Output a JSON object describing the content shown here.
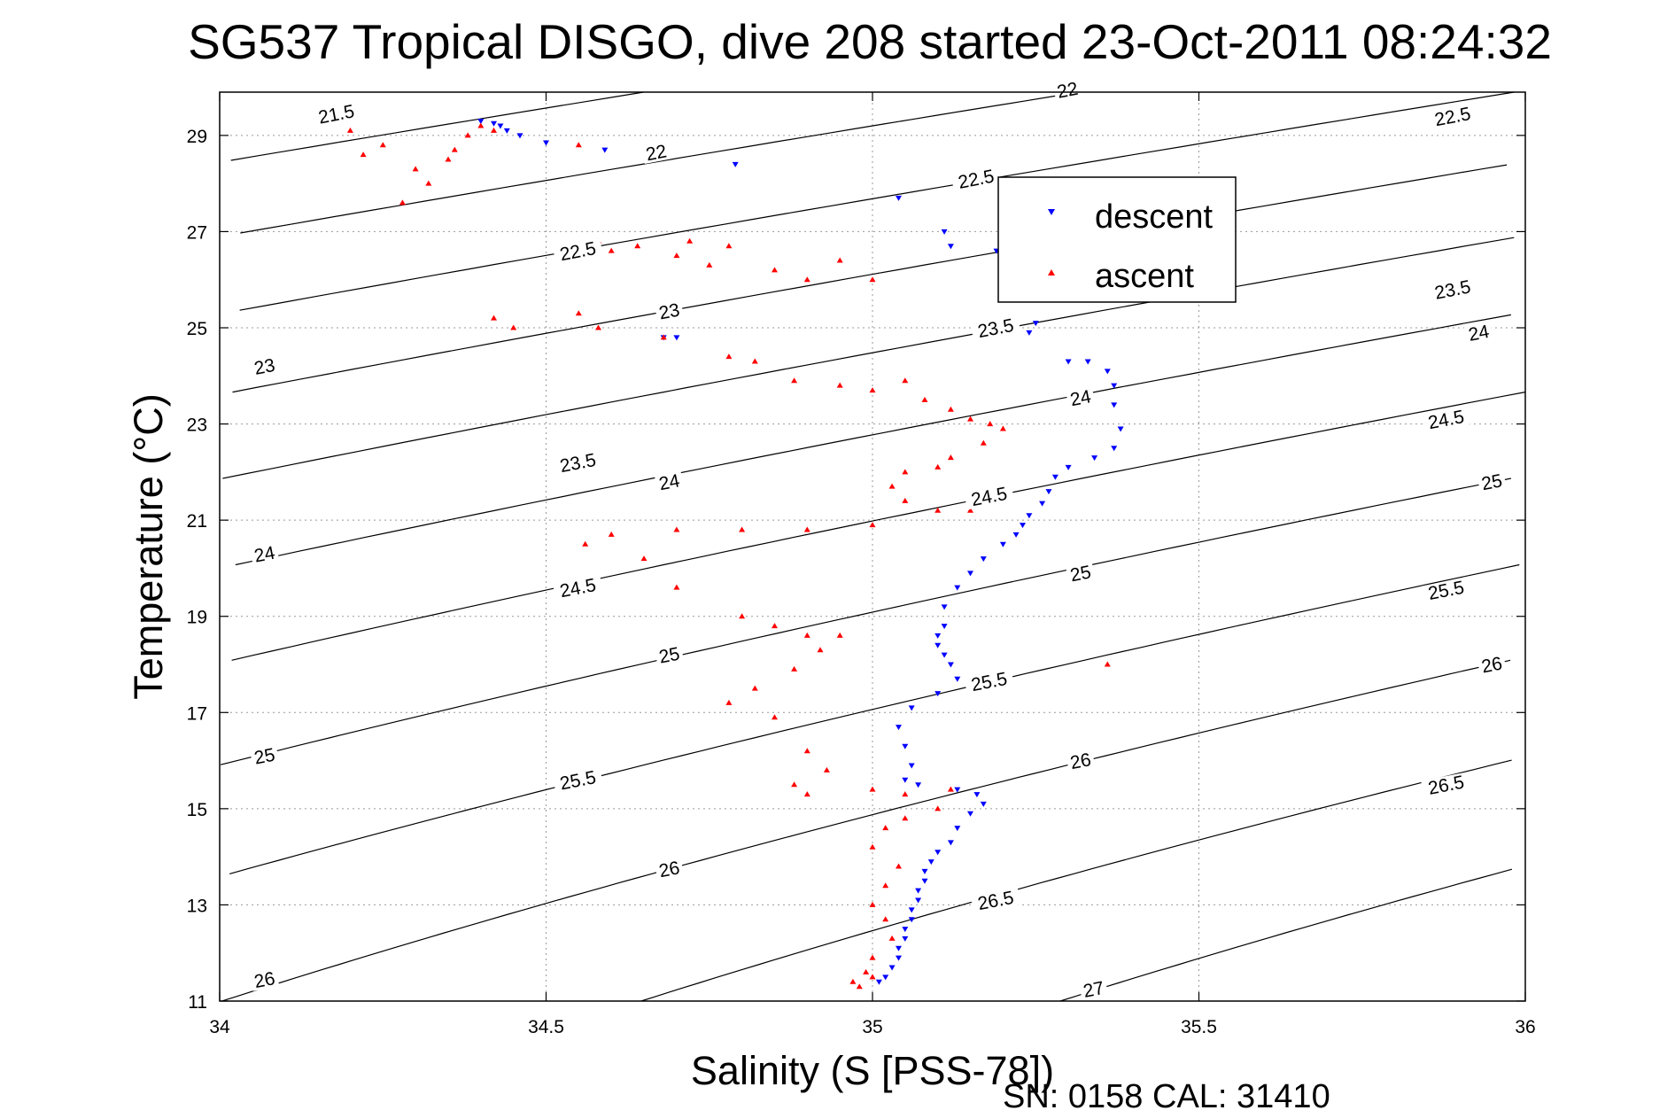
{
  "chart_data": {
    "type": "scatter",
    "title": "SG537 Tropical DISGO, dive 208 started 23-Oct-2011 08:24:32",
    "xlabel": "Salinity (S [PSS-78])",
    "ylabel": "Temperature (°C)",
    "xlim": [
      34,
      36
    ],
    "ylim": [
      11,
      29.9
    ],
    "xticks": [
      34,
      34.5,
      35,
      35.5,
      36
    ],
    "xtick_labels": [
      "34",
      "34.5",
      "35",
      "35.5",
      "36"
    ],
    "yticks": [
      11,
      13,
      15,
      17,
      19,
      21,
      23,
      25,
      27,
      29
    ],
    "ytick_labels": [
      "11",
      "13",
      "15",
      "17",
      "19",
      "21",
      "23",
      "25",
      "27",
      "29"
    ],
    "grid": true,
    "legend_position": "top-right",
    "footer": "SN: 0158  CAL: 31410",
    "colors": {
      "descent": "#0000ff",
      "ascent": "#ff0000",
      "contour": "#000000",
      "grid": "#999999"
    },
    "density_contours": {
      "levels": [
        21.5,
        22,
        22.5,
        23,
        23.5,
        24,
        24.5,
        25,
        25.5,
        26,
        26.5,
        27
      ],
      "labels": [
        {
          "text": "21.5",
          "x": 34.18,
          "y": 29.35
        },
        {
          "text": "22",
          "x": 34.67,
          "y": 28.55
        },
        {
          "text": "22",
          "x": 35.3,
          "y": 29.85
        },
        {
          "text": "22.5",
          "x": 34.55,
          "y": 26.5
        },
        {
          "text": "22.5",
          "x": 35.16,
          "y": 28.0
        },
        {
          "text": "22.5",
          "x": 35.89,
          "y": 29.3
        },
        {
          "text": "23",
          "x": 34.07,
          "y": 24.1
        },
        {
          "text": "23",
          "x": 34.69,
          "y": 25.25
        },
        {
          "text": "23.5",
          "x": 34.55,
          "y": 22.1
        },
        {
          "text": "23.5",
          "x": 35.19,
          "y": 24.9
        },
        {
          "text": "23.5",
          "x": 35.89,
          "y": 25.7
        },
        {
          "text": "24",
          "x": 34.07,
          "y": 20.2
        },
        {
          "text": "24",
          "x": 34.69,
          "y": 21.7
        },
        {
          "text": "24",
          "x": 35.32,
          "y": 23.45
        },
        {
          "text": "24",
          "x": 35.93,
          "y": 24.8
        },
        {
          "text": "24.5",
          "x": 34.55,
          "y": 19.5
        },
        {
          "text": "24.5",
          "x": 35.18,
          "y": 21.4
        },
        {
          "text": "24.5",
          "x": 35.88,
          "y": 23.0
        },
        {
          "text": "25",
          "x": 34.07,
          "y": 16.0
        },
        {
          "text": "25",
          "x": 34.69,
          "y": 18.1
        },
        {
          "text": "25",
          "x": 35.32,
          "y": 19.8
        },
        {
          "text": "25",
          "x": 35.95,
          "y": 21.7
        },
        {
          "text": "25.5",
          "x": 34.55,
          "y": 15.5
        },
        {
          "text": "25.5",
          "x": 35.18,
          "y": 17.55
        },
        {
          "text": "25.5",
          "x": 35.88,
          "y": 19.45
        },
        {
          "text": "26",
          "x": 34.07,
          "y": 11.35
        },
        {
          "text": "26",
          "x": 34.69,
          "y": 13.65
        },
        {
          "text": "26",
          "x": 35.32,
          "y": 15.9
        },
        {
          "text": "26",
          "x": 35.95,
          "y": 17.9
        },
        {
          "text": "26.5",
          "x": 35.19,
          "y": 13.0
        },
        {
          "text": "26.5",
          "x": 35.88,
          "y": 15.4
        },
        {
          "text": "27",
          "x": 35.34,
          "y": 11.15
        }
      ]
    },
    "series": [
      {
        "name": "descent",
        "marker": "triangle-down",
        "x": [
          34.4,
          34.42,
          34.43,
          34.44,
          34.46,
          34.5,
          34.59,
          34.79,
          34.7,
          35.04,
          35.11,
          35.12,
          35.19,
          35.25,
          34.68,
          35.24,
          35.3,
          35.33,
          35.36,
          35.37,
          35.37,
          35.38,
          35.37,
          35.34,
          35.3,
          35.28,
          35.27,
          35.26,
          35.24,
          35.23,
          35.22,
          35.2,
          35.17,
          35.15,
          35.13,
          35.11,
          35.11,
          35.1,
          35.1,
          35.11,
          35.12,
          35.13,
          35.1,
          35.06,
          35.04,
          35.05,
          35.06,
          35.05,
          35.07,
          35.13,
          35.16,
          35.17,
          35.15,
          35.13,
          35.12,
          35.1,
          35.09,
          35.08,
          35.08,
          35.07,
          35.07,
          35.06,
          35.06,
          35.05,
          35.05,
          35.04,
          35.04,
          35.03,
          35.02,
          35.01
        ],
        "y": [
          29.3,
          29.25,
          29.2,
          29.1,
          29.0,
          28.85,
          28.7,
          28.4,
          24.8,
          27.7,
          27.0,
          26.7,
          26.6,
          25.1,
          24.8,
          24.9,
          24.3,
          24.3,
          24.1,
          23.8,
          23.4,
          22.9,
          22.5,
          22.3,
          22.1,
          21.9,
          21.6,
          21.35,
          21.1,
          20.9,
          20.7,
          20.5,
          20.2,
          19.9,
          19.6,
          19.2,
          18.8,
          18.6,
          18.4,
          18.2,
          18.0,
          17.7,
          17.4,
          17.1,
          16.7,
          16.3,
          15.9,
          15.6,
          15.5,
          15.4,
          15.3,
          15.1,
          14.9,
          14.6,
          14.3,
          14.1,
          13.9,
          13.7,
          13.5,
          13.3,
          13.1,
          12.9,
          12.7,
          12.5,
          12.3,
          12.1,
          11.9,
          11.7,
          11.5,
          11.4
        ]
      },
      {
        "name": "ascent",
        "marker": "triangle-up",
        "x": [
          34.2,
          34.22,
          34.25,
          34.3,
          34.35,
          34.38,
          34.4,
          34.36,
          34.28,
          34.32,
          34.42,
          34.55,
          34.58,
          34.6,
          34.64,
          34.7,
          34.72,
          34.75,
          34.78,
          34.85,
          34.9,
          34.95,
          35.0,
          34.55,
          34.42,
          34.45,
          34.58,
          34.68,
          34.78,
          34.82,
          34.88,
          34.95,
          35.0,
          35.05,
          35.08,
          35.12,
          35.15,
          35.18,
          35.2,
          35.17,
          35.12,
          35.1,
          35.05,
          35.03,
          35.05,
          35.1,
          35.15,
          35.0,
          34.9,
          34.8,
          34.7,
          34.6,
          34.56,
          34.65,
          34.7,
          34.8,
          34.85,
          34.9,
          34.95,
          34.92,
          34.88,
          34.82,
          34.78,
          34.85,
          34.9,
          34.93,
          34.88,
          34.9,
          35.0,
          35.05,
          35.12,
          35.1,
          35.05,
          35.02,
          35.0,
          35.04,
          35.02,
          35.0,
          35.02,
          35.03,
          35.0,
          34.99,
          35.36,
          35.0,
          34.98,
          34.97
        ],
        "y": [
          29.1,
          28.6,
          28.8,
          28.3,
          28.5,
          29.0,
          29.2,
          28.7,
          27.6,
          28.0,
          29.1,
          28.8,
          26.8,
          26.6,
          26.7,
          26.5,
          26.8,
          26.3,
          26.7,
          26.2,
          26.0,
          26.4,
          26.0,
          25.3,
          25.2,
          25.0,
          25.0,
          24.8,
          24.4,
          24.3,
          23.9,
          23.8,
          23.7,
          23.9,
          23.5,
          23.3,
          23.1,
          23.0,
          22.9,
          22.6,
          22.3,
          22.1,
          22.0,
          21.7,
          21.4,
          21.2,
          21.2,
          20.9,
          20.8,
          20.8,
          20.8,
          20.7,
          20.5,
          20.2,
          19.6,
          19.0,
          18.8,
          18.6,
          18.6,
          18.3,
          17.9,
          17.5,
          17.2,
          16.9,
          16.2,
          15.8,
          15.5,
          15.3,
          15.4,
          15.3,
          15.4,
          15.0,
          14.8,
          14.6,
          14.2,
          13.8,
          13.4,
          13.0,
          12.7,
          12.3,
          11.9,
          11.6,
          18.0,
          11.5,
          11.3,
          11.4
        ]
      }
    ]
  }
}
